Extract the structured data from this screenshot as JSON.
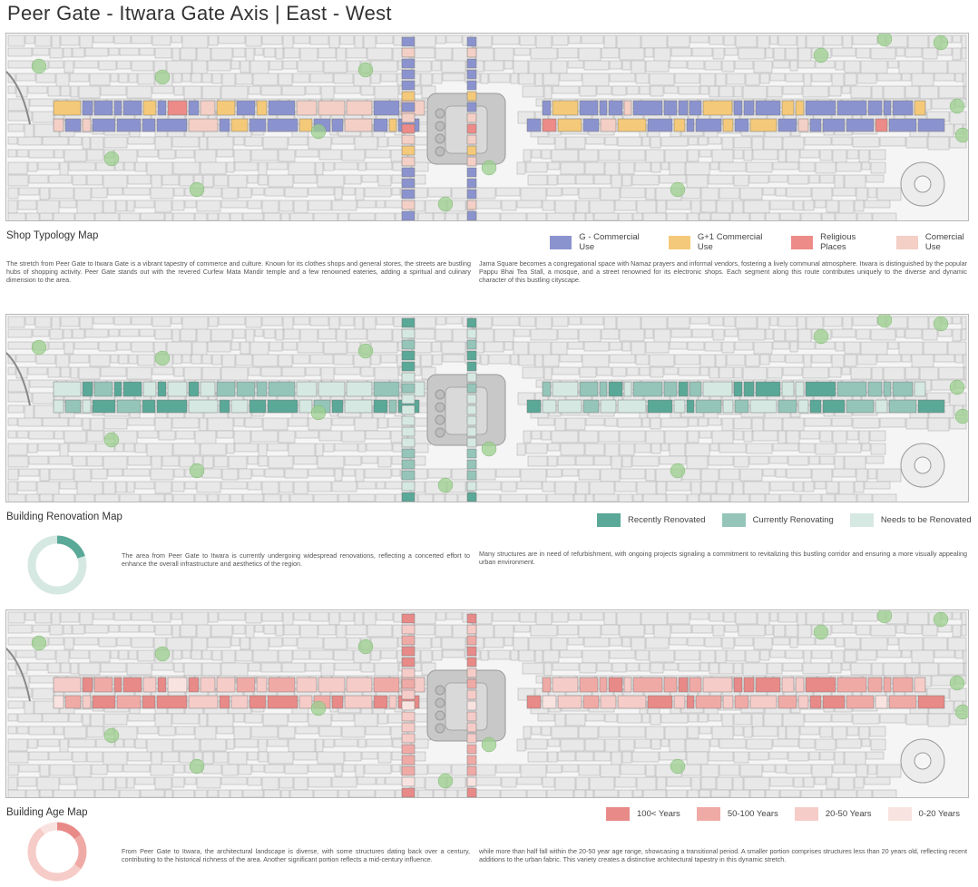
{
  "title": "Peer Gate - Itwara Gate Axis  |  East - West",
  "colors": {
    "g_commercial": "#8b93cf",
    "g1_commercial": "#f4c979",
    "religious": "#ec8b88",
    "comercial_use": "#f3cfc6",
    "recently_renovated": "#5aa897",
    "currently_renovating": "#94c5b8",
    "needs_renovation": "#d6e8e2",
    "age_100": "#e88a88",
    "age_50_100": "#f0aaa6",
    "age_20_50": "#f6ccc8",
    "age_0_20": "#f9e3e0",
    "building": "#e8e8e8",
    "tree": "#9ccf8f",
    "square": "#c8c8c8"
  },
  "shop_typology": {
    "heading": "Shop Typology Map",
    "legend": [
      "G - Commercial Use",
      "G+1 Commercial Use",
      "Religious Places",
      "Comercial Use"
    ],
    "para_left": "The stretch from Peer Gate to Itwara Gate is a vibrant tapestry of commerce and culture. Known for its clothes shops and general stores, the streets are bustling hubs of shopping activity. Peer Gate stands out with the revered Curfew Mata Mandir temple and a few renowned eateries, adding a spiritual and culinary dimension to the area.",
    "para_right": "Jama Square becomes a congregational space with Namaz prayers and informal vendors, fostering a lively communal atmosphere. Itwara is distinguished by the popular Pappu Bhai Tea Stall, a mosque, and a street renowned for its electronic shops. Each segment along this route contributes uniquely to the diverse and dynamic character of this bustling cityscape."
  },
  "renovation": {
    "heading": "Building Renovation Map",
    "legend": [
      "Recently Renovated",
      "Currently Renovating",
      "Needs to be Renovated"
    ],
    "para_left": "The area from Peer Gate to Itwara is currently undergoing widespread renovations, reflecting a concerted effort to enhance the overall infrastructure and aesthetics of the region.",
    "para_right": "Many structures are in need of refurbishment, with ongoing projects signaling a commitment to revitalizing this bustling corridor and ensuring a more visually appealing urban environment.",
    "donut_fractions": [
      0.2,
      0.8
    ]
  },
  "age": {
    "heading": "Building Age Map",
    "legend": [
      "100< Years",
      "50-100 Years",
      "20-50 Years",
      "0-20 Years"
    ],
    "para_left": "From Peer Gate to Itwara, the architectural landscape is diverse, with some structures dating back over a century, contributing to the historical richness of the area. Another significant portion reflects a mid-century influence.",
    "para_right": "while more than half fall within the 20-50 year age range, showcasing a transitional period. A smaller portion comprises structures less than 20 years old, reflecting recent additions to the urban fabric. This variety creates a distinctive architectural tapestry in this dynamic stretch.",
    "donut_fractions": [
      0.15,
      0.2,
      0.55,
      0.1
    ]
  }
}
